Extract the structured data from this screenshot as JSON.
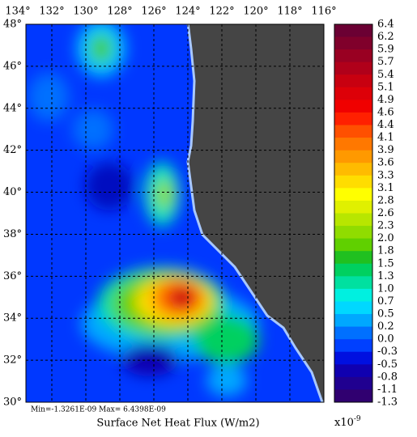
{
  "map": {
    "longitude_labels": [
      "134°",
      "132°",
      "130°",
      "128°",
      "126°",
      "124°",
      "122°",
      "120°",
      "118°",
      "116°"
    ],
    "latitude_labels": [
      "48°",
      "46°",
      "44°",
      "42°",
      "40°",
      "38°",
      "36°",
      "34°",
      "32°",
      "30°"
    ],
    "stats": "Min=-1.3261E-09   Max= 6.4398E-09",
    "title": "Surface Net Heat Flux (W/m2)"
  },
  "colorbar": {
    "labels": [
      "6.4",
      "6.2",
      "5.9",
      "5.7",
      "5.4",
      "5.1",
      "4.9",
      "4.6",
      "4.4",
      "4.1",
      "3.9",
      "3.6",
      "3.3",
      "3.1",
      "2.8",
      "2.6",
      "2.3",
      "2.0",
      "1.8",
      "1.5",
      "1.3",
      "1.0",
      "0.7",
      "0.5",
      "0.2",
      "0.0",
      "-0.3",
      "-0.5",
      "-0.8",
      "-1.1",
      "-1.3"
    ],
    "colors": [
      "#6b0033",
      "#80002b",
      "#990022",
      "#b0001a",
      "#c80010",
      "#dd0008",
      "#f00000",
      "#ff2000",
      "#ff5000",
      "#ff7800",
      "#ff9900",
      "#ffbb00",
      "#ffdd00",
      "#ffff00",
      "#e0f000",
      "#b8e600",
      "#90dc00",
      "#60d000",
      "#20c020",
      "#00d060",
      "#00e0a0",
      "#00f0e0",
      "#00d8ff",
      "#00a8ff",
      "#0070ff",
      "#0040ff",
      "#0010e0",
      "#1000b0",
      "#200090",
      "#300070"
    ],
    "scale_base": "x10",
    "scale_exponent": "-9"
  }
}
